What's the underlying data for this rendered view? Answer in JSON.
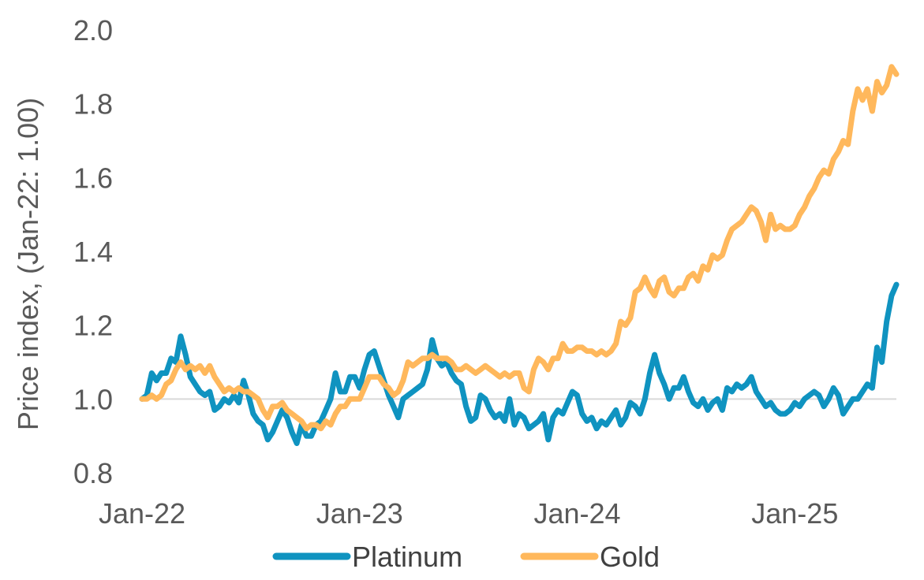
{
  "chart_data": {
    "type": "line",
    "title": "",
    "xlabel": "",
    "ylabel": "Price index, (Jan-22: 1.00)",
    "ylim": [
      0.8,
      2.0
    ],
    "yticks": [
      "0.8",
      "1.0",
      "1.2",
      "1.4",
      "1.6",
      "1.8",
      "2.0"
    ],
    "xticks": [
      "Jan-22",
      "Jan-23",
      "Jan-24",
      "Jan-25"
    ],
    "reference_line": 1.0,
    "legend_position": "bottom",
    "colors": {
      "Platinum": "#0f93c0",
      "Gold": "#ffb85c"
    },
    "series": [
      {
        "name": "Platinum",
        "points": [
          [
            0.0,
            1.0
          ],
          [
            0.4,
            1.01
          ],
          [
            0.8,
            1.07
          ],
          [
            1.2,
            1.05
          ],
          [
            1.6,
            1.07
          ],
          [
            2.0,
            1.07
          ],
          [
            2.4,
            1.11
          ],
          [
            2.8,
            1.1
          ],
          [
            3.2,
            1.17
          ],
          [
            3.6,
            1.12
          ],
          [
            4.0,
            1.06
          ],
          [
            4.4,
            1.04
          ],
          [
            4.8,
            1.02
          ],
          [
            5.2,
            1.01
          ],
          [
            5.6,
            1.02
          ],
          [
            6.0,
            0.97
          ],
          [
            6.4,
            0.98
          ],
          [
            6.8,
            1.0
          ],
          [
            7.2,
            0.99
          ],
          [
            7.6,
            1.01
          ],
          [
            8.0,
            0.99
          ],
          [
            8.4,
            1.05
          ],
          [
            8.8,
            1.01
          ],
          [
            9.2,
            0.96
          ],
          [
            9.6,
            0.94
          ],
          [
            10.0,
            0.93
          ],
          [
            10.4,
            0.89
          ],
          [
            10.8,
            0.91
          ],
          [
            11.2,
            0.94
          ],
          [
            11.6,
            0.97
          ],
          [
            12.0,
            0.95
          ],
          [
            12.4,
            0.91
          ],
          [
            12.8,
            0.88
          ],
          [
            13.2,
            0.93
          ],
          [
            13.6,
            0.9
          ],
          [
            14.0,
            0.9
          ],
          [
            14.4,
            0.93
          ],
          [
            14.8,
            0.94
          ],
          [
            15.2,
            0.97
          ],
          [
            15.6,
            1.0
          ],
          [
            16.0,
            1.07
          ],
          [
            16.4,
            1.02
          ],
          [
            16.8,
            1.02
          ],
          [
            17.2,
            1.06
          ],
          [
            17.6,
            1.06
          ],
          [
            18.0,
            1.03
          ],
          [
            18.4,
            1.08
          ],
          [
            18.8,
            1.12
          ],
          [
            19.2,
            1.13
          ],
          [
            19.6,
            1.09
          ],
          [
            20.0,
            1.05
          ],
          [
            20.4,
            1.01
          ],
          [
            20.8,
            0.98
          ],
          [
            21.2,
            0.95
          ],
          [
            21.6,
            1.0
          ],
          [
            22.0,
            1.01
          ],
          [
            22.4,
            1.02
          ],
          [
            22.8,
            1.03
          ],
          [
            23.2,
            1.04
          ],
          [
            23.6,
            1.08
          ],
          [
            24.0,
            1.16
          ],
          [
            24.4,
            1.11
          ],
          [
            24.8,
            1.09
          ],
          [
            25.2,
            1.1
          ],
          [
            25.6,
            1.07
          ],
          [
            26.0,
            1.05
          ],
          [
            26.4,
            1.04
          ],
          [
            26.8,
            0.98
          ],
          [
            27.2,
            0.94
          ],
          [
            27.6,
            0.95
          ],
          [
            28.0,
            1.01
          ],
          [
            28.4,
            1.0
          ],
          [
            28.8,
            0.97
          ],
          [
            29.2,
            0.95
          ],
          [
            29.6,
            0.96
          ],
          [
            30.0,
            0.94
          ],
          [
            30.4,
            1.0
          ],
          [
            30.8,
            0.93
          ],
          [
            31.2,
            0.96
          ],
          [
            31.6,
            0.95
          ],
          [
            32.0,
            0.92
          ],
          [
            32.4,
            0.93
          ],
          [
            32.8,
            0.94
          ],
          [
            33.2,
            0.96
          ],
          [
            33.6,
            0.89
          ],
          [
            34.0,
            0.95
          ],
          [
            34.4,
            0.97
          ],
          [
            34.8,
            0.96
          ],
          [
            35.2,
            0.99
          ],
          [
            35.6,
            1.02
          ],
          [
            36.0,
            1.01
          ],
          [
            36.4,
            0.96
          ],
          [
            36.8,
            0.94
          ],
          [
            37.2,
            0.95
          ],
          [
            37.6,
            0.92
          ],
          [
            38.0,
            0.94
          ],
          [
            38.4,
            0.93
          ],
          [
            38.8,
            0.95
          ],
          [
            39.2,
            0.97
          ],
          [
            39.6,
            0.93
          ],
          [
            40.0,
            0.95
          ],
          [
            40.4,
            0.99
          ],
          [
            40.8,
            0.98
          ],
          [
            41.2,
            0.96
          ],
          [
            41.6,
            1.0
          ],
          [
            42.0,
            1.07
          ],
          [
            42.4,
            1.12
          ],
          [
            42.8,
            1.07
          ],
          [
            43.2,
            1.04
          ],
          [
            43.6,
            1.0
          ],
          [
            44.0,
            1.03
          ],
          [
            44.4,
            1.03
          ],
          [
            44.8,
            1.06
          ],
          [
            45.2,
            1.02
          ],
          [
            45.6,
            0.99
          ],
          [
            46.0,
            0.98
          ],
          [
            46.4,
            1.0
          ],
          [
            46.8,
            0.97
          ],
          [
            47.2,
            0.99
          ],
          [
            47.6,
            1.0
          ],
          [
            48.0,
            0.97
          ],
          [
            48.4,
            1.03
          ],
          [
            48.8,
            1.02
          ],
          [
            49.2,
            1.04
          ],
          [
            49.6,
            1.03
          ],
          [
            50.0,
            1.04
          ],
          [
            50.4,
            1.06
          ],
          [
            50.8,
            1.02
          ],
          [
            51.2,
            1.0
          ],
          [
            51.6,
            0.98
          ],
          [
            52.0,
            0.99
          ],
          [
            52.4,
            0.97
          ],
          [
            52.8,
            0.96
          ],
          [
            53.2,
            0.96
          ],
          [
            53.6,
            0.97
          ],
          [
            54.0,
            0.99
          ],
          [
            54.4,
            0.98
          ],
          [
            54.8,
            1.0
          ],
          [
            55.2,
            1.01
          ],
          [
            55.6,
            1.02
          ],
          [
            56.0,
            1.01
          ],
          [
            56.4,
            0.98
          ],
          [
            56.8,
            1.0
          ],
          [
            57.2,
            1.03
          ],
          [
            57.6,
            1.01
          ],
          [
            58.0,
            0.96
          ],
          [
            58.4,
            0.98
          ],
          [
            58.8,
            1.0
          ],
          [
            59.2,
            1.0
          ],
          [
            59.6,
            1.02
          ],
          [
            60.0,
            1.04
          ],
          [
            60.4,
            1.03
          ],
          [
            60.8,
            1.14
          ],
          [
            61.2,
            1.1
          ],
          [
            61.6,
            1.21
          ],
          [
            62.0,
            1.28
          ],
          [
            62.4,
            1.31
          ]
        ]
      },
      {
        "name": "Gold",
        "points": [
          [
            0.0,
            1.0
          ],
          [
            0.4,
            1.0
          ],
          [
            0.8,
            1.01
          ],
          [
            1.2,
            1.0
          ],
          [
            1.6,
            1.01
          ],
          [
            2.0,
            1.04
          ],
          [
            2.4,
            1.05
          ],
          [
            2.8,
            1.08
          ],
          [
            3.2,
            1.1
          ],
          [
            3.6,
            1.08
          ],
          [
            4.0,
            1.09
          ],
          [
            4.4,
            1.08
          ],
          [
            4.8,
            1.09
          ],
          [
            5.2,
            1.07
          ],
          [
            5.6,
            1.09
          ],
          [
            6.0,
            1.06
          ],
          [
            6.4,
            1.04
          ],
          [
            6.8,
            1.02
          ],
          [
            7.2,
            1.03
          ],
          [
            7.6,
            1.02
          ],
          [
            8.0,
            1.03
          ],
          [
            8.4,
            1.02
          ],
          [
            8.8,
            1.02
          ],
          [
            9.2,
            1.01
          ],
          [
            9.6,
            1.0
          ],
          [
            10.0,
            0.97
          ],
          [
            10.4,
            0.95
          ],
          [
            10.8,
            0.98
          ],
          [
            11.2,
            0.98
          ],
          [
            11.6,
            0.99
          ],
          [
            12.0,
            0.97
          ],
          [
            12.4,
            0.96
          ],
          [
            12.8,
            0.95
          ],
          [
            13.2,
            0.94
          ],
          [
            13.6,
            0.92
          ],
          [
            14.0,
            0.93
          ],
          [
            14.4,
            0.93
          ],
          [
            14.8,
            0.92
          ],
          [
            15.2,
            0.94
          ],
          [
            15.6,
            0.93
          ],
          [
            16.0,
            0.96
          ],
          [
            16.4,
            0.98
          ],
          [
            16.8,
            0.98
          ],
          [
            17.2,
            1.0
          ],
          [
            17.6,
            1.0
          ],
          [
            18.0,
            1.0
          ],
          [
            18.4,
            1.03
          ],
          [
            18.8,
            1.06
          ],
          [
            19.2,
            1.06
          ],
          [
            19.6,
            1.06
          ],
          [
            20.0,
            1.04
          ],
          [
            20.4,
            1.03
          ],
          [
            20.8,
            1.01
          ],
          [
            21.2,
            1.02
          ],
          [
            21.6,
            1.05
          ],
          [
            22.0,
            1.1
          ],
          [
            22.4,
            1.09
          ],
          [
            22.8,
            1.1
          ],
          [
            23.2,
            1.11
          ],
          [
            23.6,
            1.11
          ],
          [
            24.0,
            1.12
          ],
          [
            24.4,
            1.11
          ],
          [
            24.8,
            1.11
          ],
          [
            25.2,
            1.11
          ],
          [
            25.6,
            1.1
          ],
          [
            26.0,
            1.08
          ],
          [
            26.4,
            1.08
          ],
          [
            26.8,
            1.09
          ],
          [
            27.2,
            1.08
          ],
          [
            27.6,
            1.07
          ],
          [
            28.0,
            1.08
          ],
          [
            28.4,
            1.09
          ],
          [
            28.8,
            1.08
          ],
          [
            29.2,
            1.07
          ],
          [
            29.6,
            1.06
          ],
          [
            30.0,
            1.07
          ],
          [
            30.4,
            1.06
          ],
          [
            30.8,
            1.07
          ],
          [
            31.2,
            1.07
          ],
          [
            31.6,
            1.03
          ],
          [
            32.0,
            1.02
          ],
          [
            32.4,
            1.08
          ],
          [
            32.8,
            1.11
          ],
          [
            33.2,
            1.1
          ],
          [
            33.6,
            1.08
          ],
          [
            34.0,
            1.11
          ],
          [
            34.4,
            1.11
          ],
          [
            34.8,
            1.15
          ],
          [
            35.2,
            1.13
          ],
          [
            35.6,
            1.13
          ],
          [
            36.0,
            1.14
          ],
          [
            36.4,
            1.14
          ],
          [
            36.8,
            1.13
          ],
          [
            37.2,
            1.13
          ],
          [
            37.6,
            1.12
          ],
          [
            38.0,
            1.13
          ],
          [
            38.4,
            1.12
          ],
          [
            38.8,
            1.13
          ],
          [
            39.2,
            1.15
          ],
          [
            39.6,
            1.21
          ],
          [
            40.0,
            1.2
          ],
          [
            40.4,
            1.22
          ],
          [
            40.8,
            1.29
          ],
          [
            41.2,
            1.3
          ],
          [
            41.6,
            1.33
          ],
          [
            42.0,
            1.3
          ],
          [
            42.4,
            1.28
          ],
          [
            42.8,
            1.32
          ],
          [
            43.2,
            1.33
          ],
          [
            43.6,
            1.29
          ],
          [
            44.0,
            1.28
          ],
          [
            44.4,
            1.3
          ],
          [
            44.8,
            1.3
          ],
          [
            45.2,
            1.33
          ],
          [
            45.6,
            1.34
          ],
          [
            46.0,
            1.32
          ],
          [
            46.4,
            1.36
          ],
          [
            46.8,
            1.35
          ],
          [
            47.2,
            1.39
          ],
          [
            47.6,
            1.38
          ],
          [
            48.0,
            1.39
          ],
          [
            48.4,
            1.43
          ],
          [
            48.8,
            1.46
          ],
          [
            49.2,
            1.47
          ],
          [
            49.6,
            1.48
          ],
          [
            50.0,
            1.5
          ],
          [
            50.4,
            1.52
          ],
          [
            50.8,
            1.51
          ],
          [
            51.2,
            1.48
          ],
          [
            51.6,
            1.43
          ],
          [
            52.0,
            1.5
          ],
          [
            52.4,
            1.46
          ],
          [
            52.8,
            1.47
          ],
          [
            53.2,
            1.46
          ],
          [
            53.6,
            1.46
          ],
          [
            54.0,
            1.47
          ],
          [
            54.4,
            1.5
          ],
          [
            54.8,
            1.52
          ],
          [
            55.2,
            1.55
          ],
          [
            55.6,
            1.57
          ],
          [
            56.0,
            1.6
          ],
          [
            56.4,
            1.62
          ],
          [
            56.8,
            1.61
          ],
          [
            57.2,
            1.65
          ],
          [
            57.6,
            1.67
          ],
          [
            58.0,
            1.7
          ],
          [
            58.4,
            1.69
          ],
          [
            58.8,
            1.78
          ],
          [
            59.2,
            1.84
          ],
          [
            59.6,
            1.81
          ],
          [
            60.0,
            1.84
          ],
          [
            60.4,
            1.78
          ],
          [
            60.8,
            1.86
          ],
          [
            61.2,
            1.83
          ],
          [
            61.6,
            1.85
          ],
          [
            62.0,
            1.9
          ],
          [
            62.4,
            1.88
          ]
        ]
      }
    ],
    "x_range": [
      0,
      62.4
    ]
  }
}
